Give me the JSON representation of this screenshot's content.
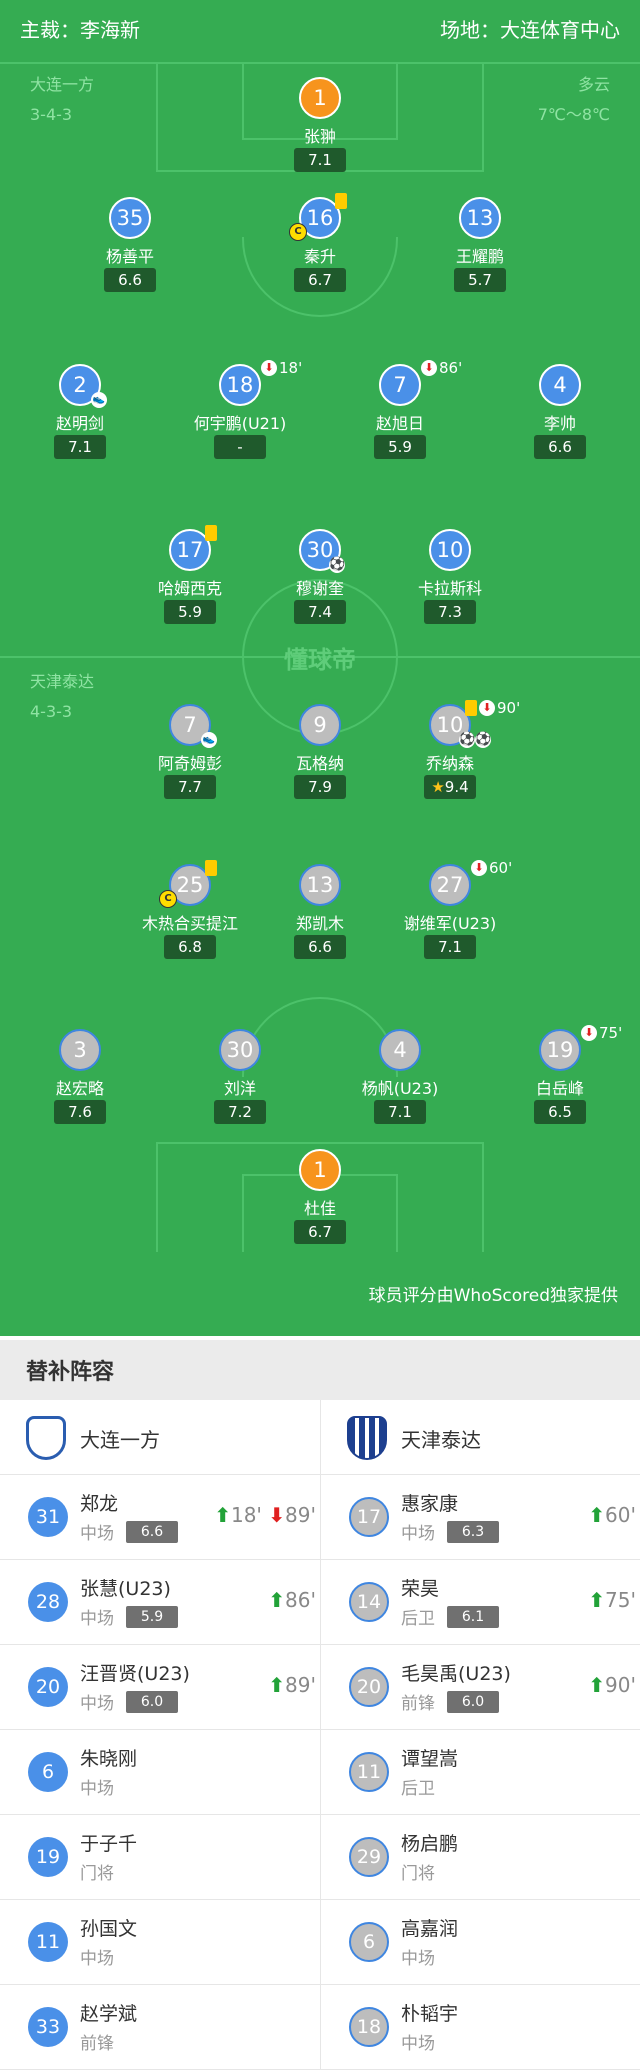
{
  "header": {
    "referee": "主裁：李海新",
    "venue": "场地：大连体育中心"
  },
  "home": {
    "name": "大连一方",
    "formation": "3-4-3",
    "weather": "多云",
    "temp": "7℃～8℃",
    "players": [
      {
        "num": "1",
        "name": "张翀",
        "rating": "7.1",
        "gk": true
      },
      {
        "num": "35",
        "name": "杨善平",
        "rating": "6.6"
      },
      {
        "num": "16",
        "name": "秦升",
        "rating": "6.7",
        "yellow": true,
        "captain": true
      },
      {
        "num": "13",
        "name": "王耀鹏",
        "rating": "5.7"
      },
      {
        "num": "2",
        "name": "赵明剑",
        "rating": "7.1",
        "assist": true
      },
      {
        "num": "18",
        "name": "何宇鹏(U21)",
        "rating": "-",
        "out": "18'"
      },
      {
        "num": "7",
        "name": "赵旭日",
        "rating": "5.9",
        "out": "86'"
      },
      {
        "num": "4",
        "name": "李帅",
        "rating": "6.6"
      },
      {
        "num": "17",
        "name": "哈姆西克",
        "rating": "5.9",
        "yellow": true
      },
      {
        "num": "30",
        "name": "穆谢奎",
        "rating": "7.4",
        "goals": 1
      },
      {
        "num": "10",
        "name": "卡拉斯科",
        "rating": "7.3"
      }
    ]
  },
  "away": {
    "name": "天津泰达",
    "formation": "4-3-3",
    "players": [
      {
        "num": "7",
        "name": "阿奇姆彭",
        "rating": "7.7",
        "assist": true
      },
      {
        "num": "9",
        "name": "瓦格纳",
        "rating": "7.9"
      },
      {
        "num": "10",
        "name": "乔纳森",
        "rating": "9.4",
        "yellow": true,
        "out": "90'",
        "goals": 2,
        "star": true
      },
      {
        "num": "25",
        "name": "木热合买提江",
        "rating": "6.8",
        "yellow": true,
        "captain": true
      },
      {
        "num": "13",
        "name": "郑凯木",
        "rating": "6.6"
      },
      {
        "num": "27",
        "name": "谢维军(U23)",
        "rating": "7.1",
        "out": "60'"
      },
      {
        "num": "3",
        "name": "赵宏略",
        "rating": "7.6"
      },
      {
        "num": "30",
        "name": "刘洋",
        "rating": "7.2"
      },
      {
        "num": "4",
        "name": "杨帆(U23)",
        "rating": "7.1"
      },
      {
        "num": "19",
        "name": "白岳峰",
        "rating": "6.5",
        "out": "75'"
      },
      {
        "num": "1",
        "name": "杜佳",
        "rating": "6.7",
        "gk": true
      }
    ]
  },
  "watermark": "懂球帝",
  "credit": "球员评分由WhoScored独家提供",
  "subs": {
    "title": "替补阵容",
    "home": [
      {
        "num": "31",
        "name": "郑龙",
        "pos": "中场",
        "rating": "6.6",
        "in": "18'",
        "out": "89'"
      },
      {
        "num": "28",
        "name": "张慧(U23)",
        "pos": "中场",
        "rating": "5.9",
        "in": "86'"
      },
      {
        "num": "20",
        "name": "汪晋贤(U23)",
        "pos": "中场",
        "rating": "6.0",
        "in": "89'"
      },
      {
        "num": "6",
        "name": "朱晓刚",
        "pos": "中场"
      },
      {
        "num": "19",
        "name": "于子千",
        "pos": "门将"
      },
      {
        "num": "11",
        "name": "孙国文",
        "pos": "中场"
      },
      {
        "num": "33",
        "name": "赵学斌",
        "pos": "前锋"
      }
    ],
    "away": [
      {
        "num": "17",
        "name": "惠家康",
        "pos": "中场",
        "rating": "6.3",
        "in": "60'"
      },
      {
        "num": "14",
        "name": "荣昊",
        "pos": "后卫",
        "rating": "6.1",
        "in": "75'"
      },
      {
        "num": "20",
        "name": "毛昊禹(U23)",
        "pos": "前锋",
        "rating": "6.0",
        "in": "90'"
      },
      {
        "num": "11",
        "name": "谭望嵩",
        "pos": "后卫"
      },
      {
        "num": "29",
        "name": "杨启鹏",
        "pos": "门将"
      },
      {
        "num": "6",
        "name": "高嘉润",
        "pos": "中场"
      },
      {
        "num": "18",
        "name": "朴韬宇",
        "pos": "中场"
      }
    ]
  },
  "colors": {
    "pitch": "#35ac52",
    "home": "#4a90e8",
    "away": "#bdbdbd",
    "gk": "#f7941d",
    "sub_in": "#22a238",
    "sub_out": "#e02020"
  }
}
